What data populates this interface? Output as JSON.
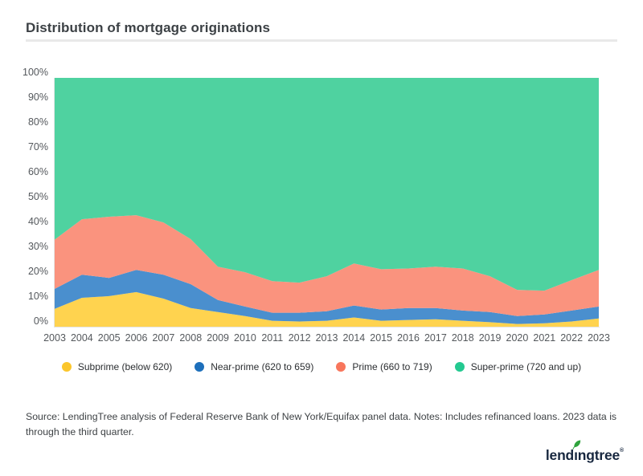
{
  "page": {
    "title": "Distribution of mortgage originations",
    "source_note": "Source: LendingTree analysis of Federal Reserve Bank of New York/Equifax panel data. Notes: Includes refinanced loans. 2023 data is through the third quarter.",
    "logo": {
      "brand": "lendingtree",
      "registered_mark": "®",
      "leaf_color": "#2fa33c",
      "text_color": "#17273f"
    }
  },
  "chart_data": {
    "type": "area",
    "stacked": true,
    "unit": "percent",
    "grid": false,
    "legend_position": "bottom",
    "ylim": [
      0,
      100
    ],
    "y_ticks": [
      "0%",
      "10%",
      "20%",
      "30%",
      "40%",
      "50%",
      "60%",
      "70%",
      "80%",
      "90%",
      "100%"
    ],
    "categories": [
      2003,
      2004,
      2005,
      2006,
      2007,
      2008,
      2009,
      2010,
      2011,
      2012,
      2013,
      2014,
      2015,
      2016,
      2017,
      2018,
      2019,
      2020,
      2021,
      2022,
      2023
    ],
    "series": [
      {
        "name": "Subprime (below 620)",
        "slug": "subprime",
        "dot_color": "#fbc62c",
        "area_color": "#ffd34f",
        "values": [
          7.2,
          11.6,
          12.3,
          13.9,
          11.3,
          7.5,
          5.9,
          4.3,
          2.4,
          2.1,
          2.4,
          3.7,
          2.4,
          2.7,
          3.0,
          2.4,
          1.8,
          1.1,
          1.4,
          2.1,
          3.3
        ]
      },
      {
        "name": "Near-prime (620 to 659)",
        "slug": "near-prime",
        "dot_color": "#1d6fbb",
        "area_color": "#4a8fce",
        "values": [
          8.0,
          9.3,
          7.3,
          8.9,
          9.6,
          9.6,
          4.8,
          3.8,
          3.2,
          3.5,
          3.8,
          4.8,
          4.5,
          4.8,
          4.5,
          4.1,
          4.1,
          3.2,
          3.5,
          4.4,
          4.8
        ]
      },
      {
        "name": "Prime (660 to 719)",
        "slug": "prime",
        "dot_color": "#f8765c",
        "area_color": "#fa937e",
        "values": [
          19.8,
          22.3,
          24.6,
          22.0,
          21.0,
          18.1,
          13.4,
          13.8,
          12.7,
          12.1,
          14.1,
          16.9,
          16.2,
          15.9,
          16.6,
          16.9,
          14.4,
          10.5,
          9.6,
          12.2,
          14.7
        ]
      },
      {
        "name": "Super-prime (720 and up)",
        "slug": "super-prime",
        "dot_color": "#23c990",
        "area_color": "#4fd2a0",
        "values": [
          65.0,
          56.8,
          55.8,
          55.2,
          58.1,
          64.8,
          75.9,
          78.1,
          81.7,
          82.3,
          79.7,
          74.6,
          76.9,
          76.6,
          75.9,
          76.6,
          79.7,
          85.2,
          85.5,
          81.3,
          77.2
        ]
      }
    ]
  }
}
